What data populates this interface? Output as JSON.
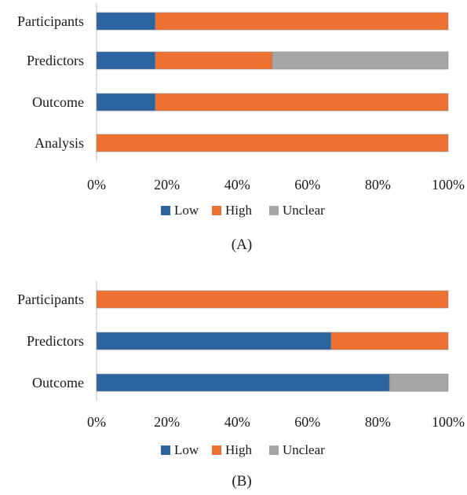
{
  "colors": {
    "low": "#2C64A0",
    "high": "#ED7131",
    "unclear": "#A6A6A6",
    "grid": "#D9D9D9",
    "axis": "#BFBFBF"
  },
  "chart_data": [
    {
      "type": "bar",
      "orientation": "horizontal",
      "stacked": true,
      "caption": "(A)",
      "categories": [
        "Participants",
        "Predictors",
        "Outcome",
        "Analysis"
      ],
      "series": [
        {
          "name": "Low",
          "color": "#2C64A0",
          "values": [
            16.7,
            16.7,
            16.7,
            0
          ]
        },
        {
          "name": "High",
          "color": "#ED7131",
          "values": [
            83.3,
            33.3,
            83.3,
            100
          ]
        },
        {
          "name": "Unclear",
          "color": "#A6A6A6",
          "values": [
            0,
            50,
            0,
            0
          ]
        }
      ],
      "xlim": [
        0,
        100
      ],
      "xticks": [
        "0%",
        "20%",
        "40%",
        "60%",
        "80%",
        "100%"
      ],
      "grid": false,
      "legend_position": "bottom"
    },
    {
      "type": "bar",
      "orientation": "horizontal",
      "stacked": true,
      "caption": "(B)",
      "categories": [
        "Participants",
        "Predictors",
        "Outcome"
      ],
      "series": [
        {
          "name": "Low",
          "color": "#2C64A0",
          "values": [
            0,
            66.7,
            83.3
          ]
        },
        {
          "name": "High",
          "color": "#ED7131",
          "values": [
            100,
            33.3,
            0
          ]
        },
        {
          "name": "Unclear",
          "color": "#A6A6A6",
          "values": [
            0,
            0,
            16.7
          ]
        }
      ],
      "xlim": [
        0,
        100
      ],
      "xticks": [
        "0%",
        "20%",
        "40%",
        "60%",
        "80%",
        "100%"
      ],
      "grid": false,
      "legend_position": "bottom"
    }
  ]
}
